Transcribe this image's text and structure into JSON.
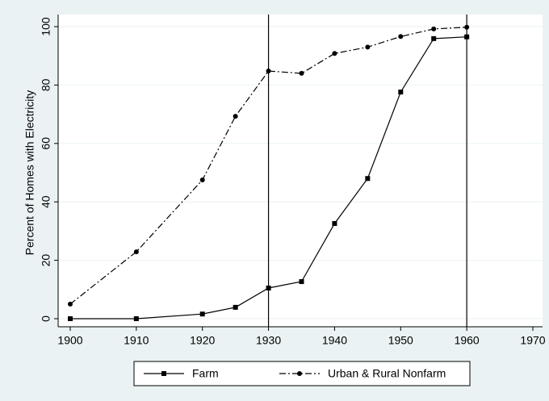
{
  "chart_data": {
    "type": "line",
    "y_label": "Percent of Homes with Electricity",
    "x": [
      1900,
      1910,
      1920,
      1925,
      1930,
      1935,
      1940,
      1945,
      1950,
      1955,
      1960
    ],
    "series": [
      {
        "name": "Farm",
        "color": "#000000",
        "marker": "square",
        "dash": "solid",
        "values": [
          0,
          0,
          1.6,
          3.9,
          10.5,
          12.7,
          32.6,
          48,
          77.6,
          95.9,
          96.5
        ]
      },
      {
        "name": "Urban & Rural Nonfarm",
        "color": "#000000",
        "marker": "circle",
        "dash": "dashdot",
        "values": [
          5,
          22.9,
          47.5,
          69.3,
          84.8,
          84,
          90.8,
          93,
          96.6,
          99.2,
          99.8
        ]
      }
    ],
    "xlim": [
      1900,
      1970
    ],
    "xticks": [
      1900,
      1910,
      1920,
      1930,
      1940,
      1950,
      1960,
      1970
    ],
    "ylim": [
      0,
      100
    ],
    "yticks": [
      0,
      20,
      40,
      60,
      80,
      100
    ],
    "xlines": [
      1930,
      1960
    ],
    "grid": true,
    "legend": "bottom"
  }
}
